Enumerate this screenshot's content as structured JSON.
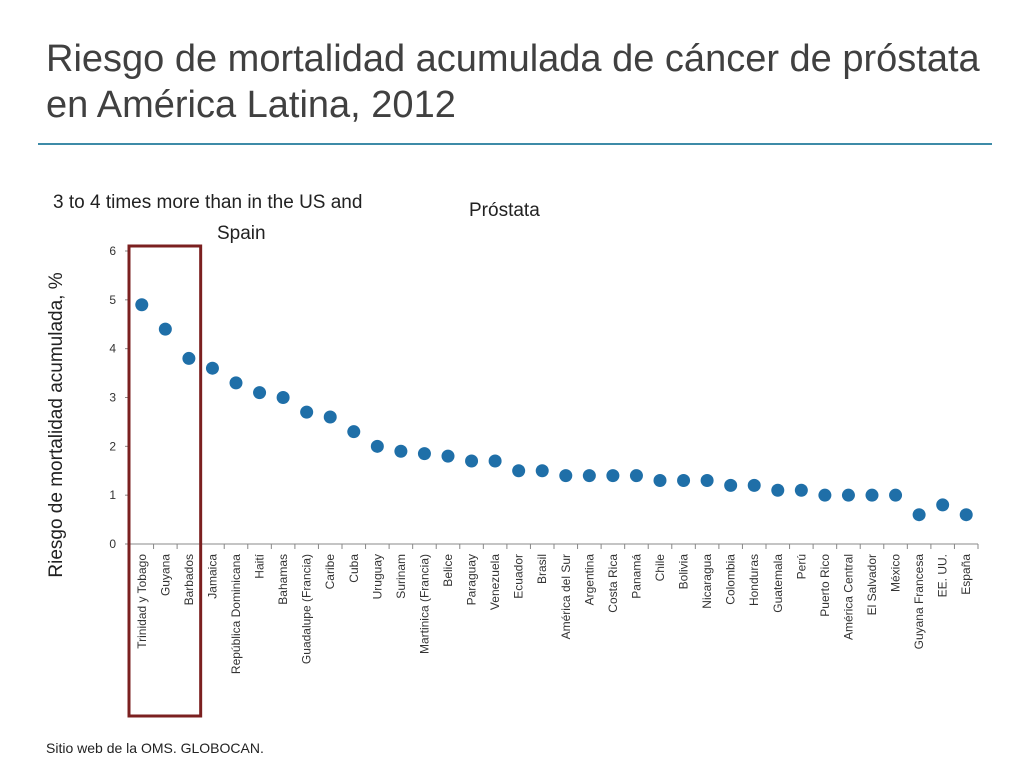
{
  "slide": {
    "title": "Riesgo de mortalidad acumulada de cáncer de próstata en América Latina, 2012",
    "source": "Sitio web de la OMS. GLOBOCAN."
  },
  "colors": {
    "marker": "#1f6fa8",
    "highlight": "#7b2020",
    "rule": "#3d8ba8"
  },
  "chart_data": {
    "type": "scatter",
    "title": "Próstata",
    "annotation_lines": [
      "3 to 4 times more than in the US and",
      "Spain"
    ],
    "ylabel": "Riesgo de mortalidad acumulada, %",
    "xlabel": "",
    "ylim": [
      0,
      6
    ],
    "yticks": [
      0,
      1,
      2,
      3,
      4,
      5,
      6
    ],
    "grid": false,
    "highlighted_categories": [
      "Trinidad y Tobago",
      "Guyana",
      "Barbados"
    ],
    "categories": [
      "Trinidad y Tobago",
      "Guyana",
      "Barbados",
      "Jamaica",
      "República Dominicana",
      "Haití",
      "Bahamas",
      "Guadalupe (Francia)",
      "Caribe",
      "Cuba",
      "Uruguay",
      "Surinam",
      "Martinica (Francia)",
      "Belice",
      "Paraguay",
      "Venezuela",
      "Ecuador",
      "Brasil",
      "América del Sur",
      "Argentina",
      "Costa Rica",
      "Panamá",
      "Chile",
      "Bolivia",
      "Nicaragua",
      "Colombia",
      "Honduras",
      "Guatemala",
      "Perú",
      "Puerto Rico",
      "América Central",
      "El Salvador",
      "México",
      "Guyana Francesa",
      "EE. UU.",
      "España"
    ],
    "values": [
      4.9,
      4.4,
      3.8,
      3.6,
      3.3,
      3.1,
      3.0,
      2.7,
      2.6,
      2.3,
      2.0,
      1.9,
      1.85,
      1.8,
      1.7,
      1.7,
      1.5,
      1.5,
      1.4,
      1.4,
      1.4,
      1.4,
      1.3,
      1.3,
      1.3,
      1.2,
      1.2,
      1.1,
      1.1,
      1.0,
      1.0,
      1.0,
      1.0,
      0.6,
      0.8,
      0.6
    ]
  }
}
